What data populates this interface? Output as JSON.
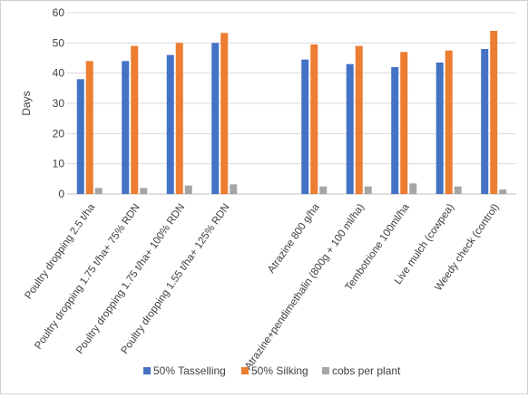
{
  "chart_data": {
    "type": "bar",
    "ylabel": "Days",
    "ylim": [
      0,
      60
    ],
    "yticks": [
      0,
      10,
      20,
      30,
      40,
      50,
      60
    ],
    "grid": true,
    "legend_position": "bottom",
    "categories": [
      "Poultry dropping 2.5 t/ha",
      "Poultry dropping 1.75 t/ha+ 75% RDN",
      "Poultry dropping 1.75 t/ha+ 100% RDN",
      "Poultry dropping 1.55 t/ha+ 125% RDN",
      "",
      "Atrazine 800 g/ha",
      "Atrazine+pendimethalin (800g + 100 ml/ha)",
      "Tembotrione 100ml/ha",
      "Live mulch (cowpea)",
      "Weedy check (control)"
    ],
    "series": [
      {
        "name": "50% Tasselling",
        "color": "#4472C4",
        "values": [
          38,
          44,
          46,
          50,
          null,
          44.5,
          43,
          42,
          43.5,
          48
        ]
      },
      {
        "name": "50% Silking",
        "color": "#ED7D31",
        "values": [
          44,
          49,
          50,
          53.3,
          null,
          49.5,
          49,
          47,
          47.5,
          54
        ]
      },
      {
        "name": "cobs per plant",
        "color": "#A5A5A5",
        "values": [
          2,
          2,
          2.8,
          3.2,
          null,
          2.5,
          2.5,
          3.5,
          2.5,
          1.5
        ]
      }
    ]
  }
}
